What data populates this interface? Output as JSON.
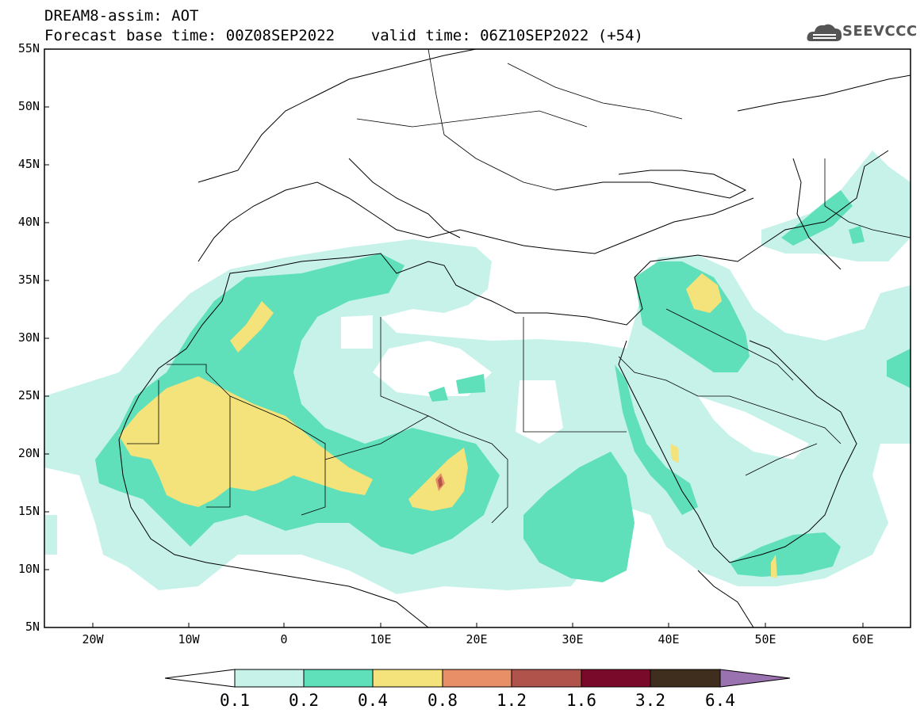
{
  "header": {
    "title_line1": "DREAM8-assim: AOT",
    "title_line2": "Forecast base time: 00Z08SEP2022    valid time: 06Z10SEP2022 (+54)",
    "logo_text": "SEEVCCC"
  },
  "map": {
    "lon_range": [
      -25,
      65
    ],
    "lat_range": [
      5,
      55
    ],
    "y_ticks": [
      "55N",
      "50N",
      "45N",
      "40N",
      "35N",
      "30N",
      "25N",
      "20N",
      "15N",
      "10N",
      "5N"
    ],
    "x_ticks": [
      "20W",
      "10W",
      "0",
      "10E",
      "20E",
      "30E",
      "40E",
      "50E",
      "60E"
    ],
    "layers": [
      {
        "level": "0.1-0.2",
        "color": "#c6f2ea"
      },
      {
        "level": "0.2-0.4",
        "color": "#5fe0bb"
      },
      {
        "level": "0.4-0.8",
        "color": "#f4e27a"
      },
      {
        "level": "0.8-1.2",
        "color": "#e88f67"
      },
      {
        "level": "1.2-1.6",
        "color": "#b0534a"
      }
    ]
  },
  "colorbar": {
    "labels": [
      "0.1",
      "0.2",
      "0.4",
      "0.8",
      "1.2",
      "1.6",
      "3.2",
      "6.4"
    ],
    "colors": [
      "#ffffff",
      "#c6f2ea",
      "#5fe0bb",
      "#f4e27a",
      "#e88f67",
      "#b0534a",
      "#7a0a2a",
      "#3f2e1e",
      "#9a72b0"
    ]
  }
}
